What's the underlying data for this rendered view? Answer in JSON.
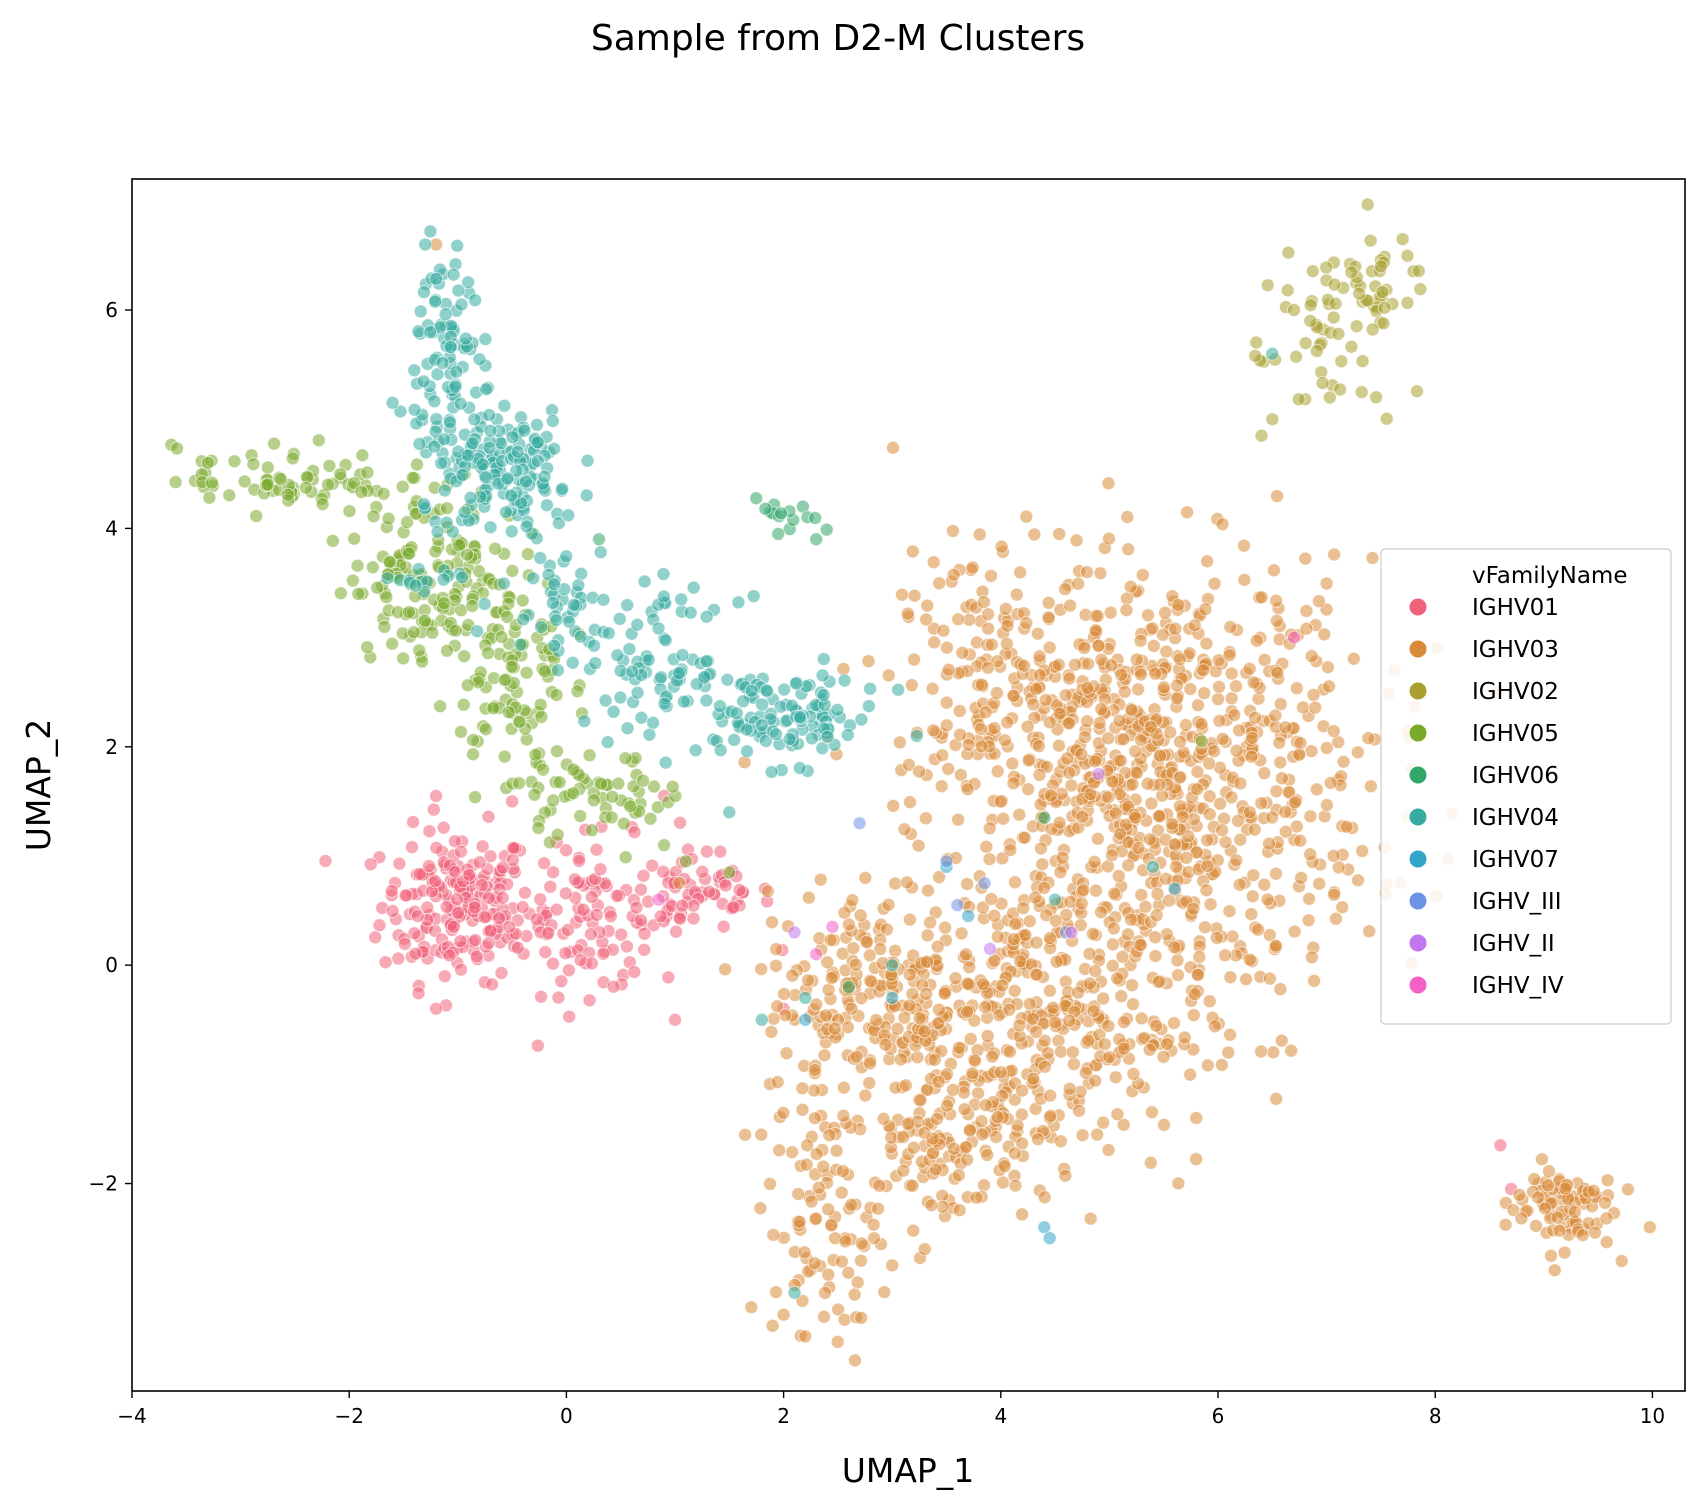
{
  "chart_data": {
    "type": "scatter",
    "title": "Sample from D2-M Clusters",
    "xlabel": "UMAP_1",
    "ylabel": "UMAP_2",
    "xlim": [
      -4,
      10.3
    ],
    "ylim": [
      -3.9,
      7.2
    ],
    "xticks": [
      -4,
      -2,
      0,
      2,
      4,
      6,
      8,
      10
    ],
    "xtick_labels": [
      "−4",
      "−2",
      "0",
      "2",
      "4",
      "6",
      "8",
      "10"
    ],
    "yticks": [
      -2,
      0,
      2,
      4,
      6
    ],
    "ytick_labels": [
      "−2",
      "0",
      "2",
      "4",
      "6"
    ],
    "grid": false,
    "legend": {
      "title": "vFamilyName",
      "position": "right"
    },
    "series": [
      {
        "name": "IGHV01",
        "color": "#f0627a",
        "clusters": [
          {
            "cx": -1.0,
            "cy": 0.55,
            "sx": 0.35,
            "sy": 0.35,
            "n": 200
          },
          {
            "cx": 0.2,
            "cy": 0.45,
            "sx": 0.45,
            "sy": 0.35,
            "n": 110
          },
          {
            "cx": 1.2,
            "cy": 0.65,
            "sx": 0.35,
            "sy": 0.2,
            "n": 60
          }
        ],
        "points": [
          [
            -1.2,
            -0.4
          ],
          [
            1.0,
            -0.5
          ],
          [
            -1.2,
            1.55
          ],
          [
            0.9,
            1.55
          ],
          [
            -0.5,
            1.5
          ],
          [
            2.0,
            -0.4
          ],
          [
            8.6,
            -1.65
          ],
          [
            8.7,
            -2.05
          ]
        ]
      },
      {
        "name": "IGHV03",
        "color": "#d98a39",
        "clusters": [
          {
            "cx": 5.4,
            "cy": 1.7,
            "sx": 1.0,
            "sy": 1.0,
            "n": 900
          },
          {
            "cx": 4.3,
            "cy": -0.5,
            "sx": 0.8,
            "sy": 0.7,
            "n": 380
          },
          {
            "cx": 2.9,
            "cy": -0.3,
            "sx": 0.55,
            "sy": 0.5,
            "n": 200
          },
          {
            "cx": 3.5,
            "cy": -1.6,
            "sx": 0.4,
            "sy": 0.4,
            "n": 110
          },
          {
            "cx": 2.4,
            "cy": -2.4,
            "sx": 0.25,
            "sy": 0.55,
            "n": 90
          },
          {
            "cx": 3.8,
            "cy": 2.6,
            "sx": 0.4,
            "sy": 0.6,
            "n": 110
          },
          {
            "cx": 9.15,
            "cy": -2.2,
            "sx": 0.25,
            "sy": 0.2,
            "n": 90
          }
        ],
        "points": [
          [
            5.9,
            3.7
          ],
          [
            2.2,
            -3.4
          ],
          [
            2.0,
            -3.2
          ],
          [
            5.8,
            -1.4
          ],
          [
            3.3,
            -2.6
          ],
          [
            3.0,
            -2.75
          ],
          [
            -1.2,
            6.6
          ]
        ]
      },
      {
        "name": "IGHV02",
        "color": "#a8a030",
        "clusters": [
          {
            "cx": 7.25,
            "cy": 6.25,
            "sx": 0.35,
            "sy": 0.2,
            "n": 45
          },
          {
            "cx": 7.0,
            "cy": 5.5,
            "sx": 0.35,
            "sy": 0.3,
            "n": 35
          }
        ],
        "points": [
          [
            6.4,
            4.85
          ],
          [
            6.5,
            5.0
          ],
          [
            7.7,
            6.65
          ],
          [
            7.5,
            6.4
          ],
          [
            6.85,
            5.9
          ],
          [
            6.7,
            6.0
          ],
          [
            7.3,
            6.15
          ]
        ]
      },
      {
        "name": "IGHV05",
        "color": "#7aaa2c",
        "clusters": [
          {
            "cx": -2.6,
            "cy": 4.45,
            "sx": 0.5,
            "sy": 0.15,
            "n": 70
          },
          {
            "cx": -1.2,
            "cy": 3.6,
            "sx": 0.4,
            "sy": 0.4,
            "n": 160
          },
          {
            "cx": -0.5,
            "cy": 2.6,
            "sx": 0.25,
            "sy": 0.5,
            "n": 90
          },
          {
            "cx": 0.3,
            "cy": 1.55,
            "sx": 0.4,
            "sy": 0.18,
            "n": 60
          }
        ],
        "points": [
          [
            5.85,
            2.05
          ],
          [
            1.1,
            0.95
          ],
          [
            1.5,
            0.85
          ],
          [
            0.9,
            1.1
          ],
          [
            -3.3,
            4.6
          ],
          [
            -0.3,
            3.95
          ]
        ]
      },
      {
        "name": "IGHV06",
        "color": "#31a66a",
        "clusters": [
          {
            "cx": 2.05,
            "cy": 4.1,
            "sx": 0.15,
            "sy": 0.08,
            "n": 14
          }
        ],
        "points": [
          [
            1.95,
            3.95
          ],
          [
            2.3,
            3.9
          ],
          [
            0.3,
            3.9
          ],
          [
            2.6,
            -0.2
          ],
          [
            4.4,
            1.35
          ]
        ]
      },
      {
        "name": "IGHV04",
        "color": "#37aba0",
        "clusters": [
          {
            "cx": -1.1,
            "cy": 5.6,
            "sx": 0.15,
            "sy": 0.6,
            "n": 90
          },
          {
            "cx": -0.6,
            "cy": 4.5,
            "sx": 0.35,
            "sy": 0.3,
            "n": 160
          },
          {
            "cx": 0.0,
            "cy": 3.4,
            "sx": 0.3,
            "sy": 0.3,
            "n": 50
          },
          {
            "cx": 0.9,
            "cy": 2.75,
            "sx": 0.35,
            "sy": 0.3,
            "n": 80
          },
          {
            "cx": 2.0,
            "cy": 2.25,
            "sx": 0.45,
            "sy": 0.2,
            "n": 110
          },
          {
            "cx": -1.3,
            "cy": 3.5,
            "sx": 0.15,
            "sy": 0.1,
            "n": 14
          }
        ],
        "points": [
          [
            6.5,
            5.6
          ],
          [
            -1.3,
            6.6
          ],
          [
            -1.6,
            5.15
          ],
          [
            -0.8,
            5.55
          ],
          [
            1.5,
            1.4
          ],
          [
            3.0,
            0.0
          ],
          [
            2.2,
            -0.3
          ],
          [
            1.8,
            -0.5
          ],
          [
            2.1,
            -3.0
          ],
          [
            4.5,
            0.6
          ],
          [
            5.4,
            0.9
          ]
        ]
      },
      {
        "name": "IGHV07",
        "color": "#33a6c8",
        "clusters": [],
        "points": [
          [
            4.4,
            -2.4
          ],
          [
            4.45,
            -2.5
          ],
          [
            3.5,
            0.9
          ],
          [
            3.7,
            0.45
          ],
          [
            5.6,
            0.7
          ],
          [
            2.2,
            -0.5
          ],
          [
            3.0,
            -0.3
          ]
        ]
      },
      {
        "name": "IGHV_III",
        "color": "#6d93e8",
        "clusters": [],
        "points": [
          [
            2.7,
            1.3
          ],
          [
            4.6,
            0.3
          ],
          [
            3.5,
            0.95
          ],
          [
            3.85,
            0.75
          ],
          [
            3.6,
            0.55
          ]
        ]
      },
      {
        "name": "IGHV_II",
        "color": "#c277ef",
        "clusters": [],
        "points": [
          [
            4.9,
            1.75
          ],
          [
            3.9,
            0.15
          ],
          [
            2.1,
            0.3
          ],
          [
            4.65,
            0.3
          ]
        ]
      },
      {
        "name": "IGHV_IV",
        "color": "#f360c6",
        "clusters": [],
        "points": [
          [
            2.3,
            0.1
          ],
          [
            6.7,
            3.0
          ],
          [
            0.85,
            0.6
          ],
          [
            2.45,
            0.35
          ]
        ]
      }
    ]
  }
}
